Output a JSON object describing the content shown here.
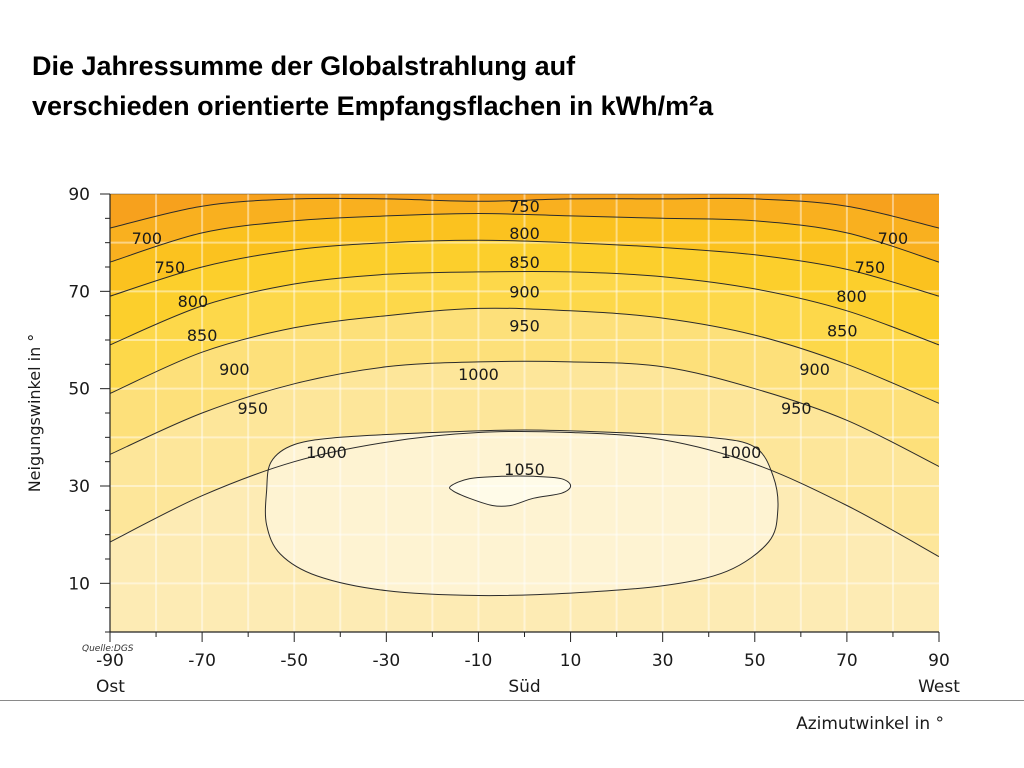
{
  "title": {
    "line1": "Die Jahressumme der Globalstrahlung auf",
    "line2": "verschieden orientierte Empfangsflachen in kWh/m²a"
  },
  "source": "Quelle:DGS",
  "colors": {
    "c650": "#f7a11d",
    "c700": "#f9b01f",
    "c750": "#fbc21f",
    "c800": "#fccf2c",
    "c850": "#fdd84a",
    "c900": "#fde07a",
    "c950": "#fde69a",
    "c1000": "#fdebb4",
    "c1050": "#fef3d2",
    "c1100": "#fffbe8",
    "line": "#2b2b2b"
  },
  "chart_data": {
    "type": "heatmap",
    "subtype": "contour",
    "xlabel": "Azimutwinkel in °",
    "ylabel": "Neigungswinkel in °",
    "xlim": [
      -90,
      90
    ],
    "ylim": [
      0,
      90
    ],
    "x_ticks": [
      -90,
      -70,
      -50,
      -30,
      -10,
      10,
      30,
      50,
      70,
      90
    ],
    "y_ticks": [
      10,
      30,
      50,
      70,
      90
    ],
    "x_categories": [
      {
        "x": -90,
        "label": "Ost"
      },
      {
        "x": 0,
        "label": "Süd"
      },
      {
        "x": 90,
        "label": "West"
      }
    ],
    "grid": true,
    "contours": [
      {
        "level": 750,
        "points": [
          [
            -90,
            83
          ],
          [
            -70,
            87.5
          ],
          [
            -50,
            89
          ],
          [
            -30,
            89
          ],
          [
            -10,
            88.5
          ],
          [
            10,
            89
          ],
          [
            30,
            89
          ],
          [
            50,
            89
          ],
          [
            70,
            87.5
          ],
          [
            90,
            83
          ]
        ]
      },
      {
        "level": 800,
        "points": [
          [
            -90,
            76
          ],
          [
            -70,
            82
          ],
          [
            -50,
            84.5
          ],
          [
            -30,
            85.5
          ],
          [
            -10,
            86
          ],
          [
            10,
            85.5
          ],
          [
            30,
            85
          ],
          [
            50,
            84.5
          ],
          [
            70,
            82
          ],
          [
            90,
            76
          ]
        ]
      },
      {
        "level": 850,
        "points": [
          [
            -90,
            69
          ],
          [
            -70,
            75
          ],
          [
            -50,
            78.5
          ],
          [
            -30,
            80
          ],
          [
            -10,
            80.5
          ],
          [
            10,
            80
          ],
          [
            30,
            79
          ],
          [
            50,
            77.5
          ],
          [
            70,
            74.5
          ],
          [
            90,
            69
          ]
        ]
      },
      {
        "level": 900,
        "points": [
          [
            -90,
            59
          ],
          [
            -70,
            67
          ],
          [
            -50,
            71.5
          ],
          [
            -30,
            73.5
          ],
          [
            -10,
            74
          ],
          [
            10,
            74
          ],
          [
            30,
            73
          ],
          [
            50,
            70.5
          ],
          [
            70,
            66
          ],
          [
            90,
            59
          ]
        ]
      },
      {
        "level": 950,
        "points": [
          [
            -90,
            49
          ],
          [
            -70,
            57.5
          ],
          [
            -50,
            62.5
          ],
          [
            -30,
            65
          ],
          [
            -10,
            66.5
          ],
          [
            10,
            66
          ],
          [
            30,
            64.5
          ],
          [
            50,
            61
          ],
          [
            70,
            55
          ],
          [
            90,
            47
          ]
        ]
      },
      {
        "level": 1000,
        "points": [
          [
            -90,
            36.5
          ],
          [
            -70,
            45
          ],
          [
            -50,
            51
          ],
          [
            -30,
            54.5
          ],
          [
            -10,
            55.5
          ],
          [
            10,
            55.5
          ],
          [
            30,
            54.5
          ],
          [
            50,
            50
          ],
          [
            70,
            43.5
          ],
          [
            90,
            34
          ]
        ]
      },
      {
        "level": 1050,
        "points": [
          [
            -90,
            18.5
          ],
          [
            -70,
            28
          ],
          [
            -50,
            35
          ],
          [
            -30,
            39
          ],
          [
            -10,
            41
          ],
          [
            10,
            41
          ],
          [
            30,
            39.5
          ],
          [
            50,
            34.5
          ],
          [
            70,
            26
          ],
          [
            90,
            15.5
          ]
        ]
      }
    ],
    "closed_contours": [
      {
        "level": 1000,
        "points": [
          [
            -55,
            35
          ],
          [
            -50,
            38.5
          ],
          [
            -40,
            40
          ],
          [
            -20,
            41
          ],
          [
            0,
            41.5
          ],
          [
            20,
            41
          ],
          [
            40,
            40
          ],
          [
            50,
            38
          ],
          [
            54,
            32
          ],
          [
            55,
            25
          ],
          [
            53,
            18.5
          ],
          [
            44,
            12.5
          ],
          [
            30,
            9.5
          ],
          [
            10,
            8
          ],
          [
            -10,
            7.5
          ],
          [
            -30,
            8.5
          ],
          [
            -45,
            11.5
          ],
          [
            -53,
            16
          ],
          [
            -56,
            22
          ],
          [
            -56,
            29
          ]
        ]
      },
      {
        "level": 1050,
        "points": [
          [
            -16,
            30
          ],
          [
            -12,
            31.5
          ],
          [
            -5,
            32
          ],
          [
            2,
            32
          ],
          [
            8,
            31.5
          ],
          [
            10,
            30
          ],
          [
            8,
            28.5
          ],
          [
            2,
            27.5
          ],
          [
            -3,
            26
          ],
          [
            -7,
            26
          ],
          [
            -12,
            27.5
          ],
          [
            -15.5,
            29
          ]
        ]
      }
    ],
    "contour_labels": [
      {
        "text": "750",
        "x": 0,
        "y": 87.5
      },
      {
        "text": "800",
        "x": 0,
        "y": 82
      },
      {
        "text": "850",
        "x": 0,
        "y": 76
      },
      {
        "text": "900",
        "x": 0,
        "y": 70
      },
      {
        "text": "950",
        "x": 0,
        "y": 63
      },
      {
        "text": "1000",
        "x": -10,
        "y": 53
      },
      {
        "text": "1050",
        "x": 0,
        "y": 33.5
      },
      {
        "text": "700",
        "x": -82,
        "y": 81
      },
      {
        "text": "750",
        "x": -77,
        "y": 75
      },
      {
        "text": "800",
        "x": -72,
        "y": 68
      },
      {
        "text": "850",
        "x": -70,
        "y": 61
      },
      {
        "text": "900",
        "x": -63,
        "y": 54
      },
      {
        "text": "950",
        "x": -59,
        "y": 46
      },
      {
        "text": "1000",
        "x": -43,
        "y": 37
      },
      {
        "text": "700",
        "x": 80,
        "y": 81
      },
      {
        "text": "750",
        "x": 75,
        "y": 75
      },
      {
        "text": "800",
        "x": 71,
        "y": 69
      },
      {
        "text": "850",
        "x": 69,
        "y": 62
      },
      {
        "text": "900",
        "x": 63,
        "y": 54
      },
      {
        "text": "950",
        "x": 59,
        "y": 46
      },
      {
        "text": "1000",
        "x": 47,
        "y": 37
      }
    ]
  }
}
